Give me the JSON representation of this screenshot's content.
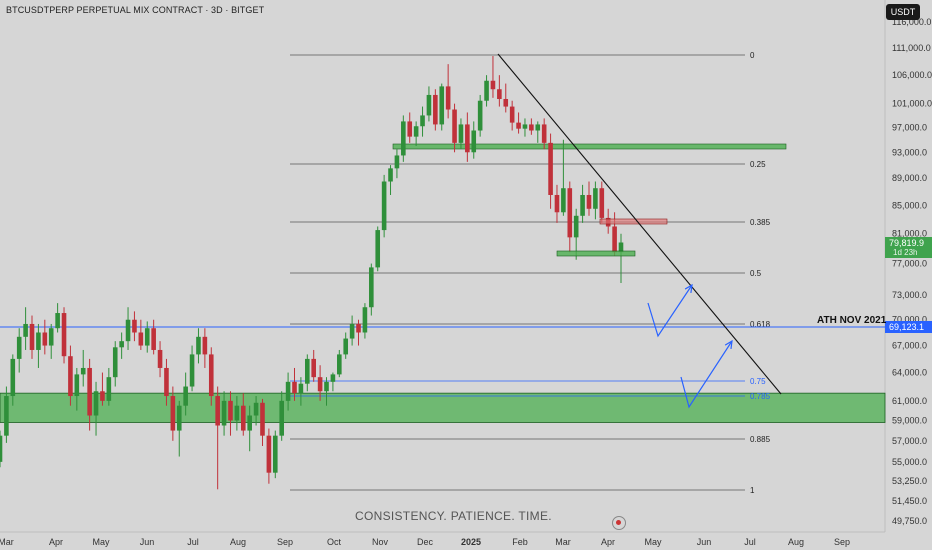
{
  "header": {
    "title": "BTCUSDTPERP PERPETUAL MIX CONTRACT · 3D · BITGET",
    "currency_button": "USDT"
  },
  "watermark": "CONSISTENCY. PATIENCE. TIME.",
  "ath_label": "ATH NOV 2021",
  "colors": {
    "up": "#2f8f3a",
    "down": "#c0313a",
    "zone": "#4caf50",
    "fib": "#444444",
    "ath_line": "#2962ff",
    "trend": "#111111"
  },
  "chart_data": {
    "type": "candlestick",
    "title": "BTCUSDTPERP PERPETUAL MIX CONTRACT · 3D · BITGET",
    "x_tick_labels": [
      "Mar",
      "Apr",
      "May",
      "Jun",
      "Jul",
      "Aug",
      "Sep",
      "Oct",
      "Nov",
      "Dec",
      "2025",
      "Feb",
      "Mar",
      "Apr",
      "May",
      "Jun",
      "Jul",
      "Aug",
      "Sep"
    ],
    "y_tick_labels": [
      "116,000.0",
      "111,000.0",
      "106,000.0",
      "101,000.0",
      "97,000.0",
      "93,000.0",
      "89,000.0",
      "85,000.0",
      "81,000.0",
      "77,000.0",
      "73,000.0",
      "70,000.0",
      "67,000.0",
      "64,000.0",
      "61,000.0",
      "59,000.0",
      "57,000.0",
      "55,000.0",
      "53,250.0",
      "51,450.0",
      "49,750.0"
    ],
    "y_tick_values": [
      116000,
      111000,
      106000,
      101000,
      97000,
      93000,
      89000,
      85000,
      81000,
      77000,
      73000,
      70000,
      67000,
      64000,
      61000,
      59000,
      57000,
      55000,
      53250,
      51450,
      49750
    ],
    "y_scale": "log",
    "current_price": {
      "value": "79,819.9",
      "countdown": "1d 23h"
    },
    "ath_price": {
      "value": "69,123.1",
      "label": "ATH NOV 2021"
    },
    "fib_levels": [
      {
        "label": "0",
        "price": 109500
      },
      {
        "label": "0.25",
        "price": 91200
      },
      {
        "label": "0.385",
        "price": 82800
      },
      {
        "label": "0.5",
        "price": 76500
      },
      {
        "label": "0.618",
        "price": 70300
      },
      {
        "label": "0.75",
        "price": 63500
      },
      {
        "label": "0.785",
        "price": 62000
      },
      {
        "label": "0.885",
        "price": 57600
      },
      {
        "label": "1",
        "price": 52800
      }
    ],
    "zones": [
      {
        "from": 58800,
        "to": 61800
      },
      {
        "from": 93600,
        "to": 94200
      }
    ],
    "candles": [
      {
        "o": 55000,
        "h": 58000,
        "l": 54500,
        "c": 57500
      },
      {
        "o": 57500,
        "h": 62500,
        "l": 56800,
        "c": 61500
      },
      {
        "o": 61500,
        "h": 66000,
        "l": 60500,
        "c": 65500
      },
      {
        "o": 65500,
        "h": 69000,
        "l": 64000,
        "c": 68000
      },
      {
        "o": 68000,
        "h": 71500,
        "l": 66500,
        "c": 69500
      },
      {
        "o": 69500,
        "h": 70500,
        "l": 65500,
        "c": 66500
      },
      {
        "o": 66500,
        "h": 69500,
        "l": 64500,
        "c": 68500
      },
      {
        "o": 68500,
        "h": 70000,
        "l": 66000,
        "c": 67000
      },
      {
        "o": 67000,
        "h": 69500,
        "l": 65500,
        "c": 69000
      },
      {
        "o": 69000,
        "h": 72000,
        "l": 68500,
        "c": 70800
      },
      {
        "o": 70800,
        "h": 71500,
        "l": 65000,
        "c": 65800
      },
      {
        "o": 65800,
        "h": 67000,
        "l": 60500,
        "c": 61500
      },
      {
        "o": 61500,
        "h": 64500,
        "l": 60000,
        "c": 63800
      },
      {
        "o": 63800,
        "h": 66500,
        "l": 62500,
        "c": 64500
      },
      {
        "o": 64500,
        "h": 65500,
        "l": 58000,
        "c": 59500
      },
      {
        "o": 59500,
        "h": 63000,
        "l": 57500,
        "c": 62000
      },
      {
        "o": 62000,
        "h": 64000,
        "l": 60500,
        "c": 61000
      },
      {
        "o": 61000,
        "h": 64500,
        "l": 60500,
        "c": 63500
      },
      {
        "o": 63500,
        "h": 67500,
        "l": 62500,
        "c": 66800
      },
      {
        "o": 66800,
        "h": 68500,
        "l": 65500,
        "c": 67500
      },
      {
        "o": 67500,
        "h": 71500,
        "l": 66500,
        "c": 70000
      },
      {
        "o": 70000,
        "h": 71000,
        "l": 67500,
        "c": 68500
      },
      {
        "o": 68500,
        "h": 70000,
        "l": 66500,
        "c": 67000
      },
      {
        "o": 67000,
        "h": 69800,
        "l": 66200,
        "c": 69000
      },
      {
        "o": 69000,
        "h": 70000,
        "l": 66000,
        "c": 66500
      },
      {
        "o": 66500,
        "h": 67500,
        "l": 63500,
        "c": 64500
      },
      {
        "o": 64500,
        "h": 65500,
        "l": 60500,
        "c": 61500
      },
      {
        "o": 61500,
        "h": 62500,
        "l": 57000,
        "c": 58000
      },
      {
        "o": 58000,
        "h": 61000,
        "l": 55500,
        "c": 60500
      },
      {
        "o": 60500,
        "h": 64000,
        "l": 59500,
        "c": 62500
      },
      {
        "o": 62500,
        "h": 67000,
        "l": 62000,
        "c": 66000
      },
      {
        "o": 66000,
        "h": 69000,
        "l": 65000,
        "c": 68000
      },
      {
        "o": 68000,
        "h": 69000,
        "l": 64500,
        "c": 66000
      },
      {
        "o": 66000,
        "h": 66800,
        "l": 60500,
        "c": 61500
      },
      {
        "o": 61500,
        "h": 62500,
        "l": 52500,
        "c": 58500
      },
      {
        "o": 58500,
        "h": 62000,
        "l": 57500,
        "c": 61000
      },
      {
        "o": 61000,
        "h": 62000,
        "l": 57500,
        "c": 59000
      },
      {
        "o": 59000,
        "h": 61500,
        "l": 58000,
        "c": 60500
      },
      {
        "o": 60500,
        "h": 61800,
        "l": 57500,
        "c": 58000
      },
      {
        "o": 58000,
        "h": 60500,
        "l": 56000,
        "c": 59500
      },
      {
        "o": 59500,
        "h": 61500,
        "l": 58500,
        "c": 60800
      },
      {
        "o": 60800,
        "h": 61200,
        "l": 56500,
        "c": 57500
      },
      {
        "o": 57500,
        "h": 58200,
        "l": 53000,
        "c": 54000
      },
      {
        "o": 54000,
        "h": 58000,
        "l": 53500,
        "c": 57500
      },
      {
        "o": 57500,
        "h": 62000,
        "l": 57000,
        "c": 61000
      },
      {
        "o": 61000,
        "h": 64000,
        "l": 60000,
        "c": 63000
      },
      {
        "o": 63000,
        "h": 64500,
        "l": 61000,
        "c": 61800
      },
      {
        "o": 61800,
        "h": 63500,
        "l": 60500,
        "c": 62800
      },
      {
        "o": 62800,
        "h": 66000,
        "l": 62000,
        "c": 65500
      },
      {
        "o": 65500,
        "h": 66500,
        "l": 63000,
        "c": 63500
      },
      {
        "o": 63500,
        "h": 64800,
        "l": 61000,
        "c": 62000
      },
      {
        "o": 62000,
        "h": 63500,
        "l": 60500,
        "c": 63000
      },
      {
        "o": 63000,
        "h": 64000,
        "l": 62000,
        "c": 63800
      },
      {
        "o": 63800,
        "h": 66500,
        "l": 63500,
        "c": 66000
      },
      {
        "o": 66000,
        "h": 68500,
        "l": 65500,
        "c": 67800
      },
      {
        "o": 67800,
        "h": 70500,
        "l": 67000,
        "c": 69500
      },
      {
        "o": 69500,
        "h": 70000,
        "l": 67000,
        "c": 68500
      },
      {
        "o": 68500,
        "h": 72000,
        "l": 67800,
        "c": 71500
      },
      {
        "o": 71500,
        "h": 77000,
        "l": 70500,
        "c": 76500
      },
      {
        "o": 76500,
        "h": 82000,
        "l": 76000,
        "c": 81500
      },
      {
        "o": 81500,
        "h": 89500,
        "l": 80500,
        "c": 88500
      },
      {
        "o": 88500,
        "h": 91000,
        "l": 86500,
        "c": 90500
      },
      {
        "o": 90500,
        "h": 93500,
        "l": 89000,
        "c": 92500
      },
      {
        "o": 92500,
        "h": 99000,
        "l": 91500,
        "c": 98000
      },
      {
        "o": 98000,
        "h": 99500,
        "l": 94500,
        "c": 95500
      },
      {
        "o": 95500,
        "h": 98000,
        "l": 94000,
        "c": 97200
      },
      {
        "o": 97200,
        "h": 100500,
        "l": 95500,
        "c": 99000
      },
      {
        "o": 99000,
        "h": 104000,
        "l": 98000,
        "c": 102500
      },
      {
        "o": 102500,
        "h": 103500,
        "l": 96500,
        "c": 97500
      },
      {
        "o": 97500,
        "h": 104500,
        "l": 96500,
        "c": 104000
      },
      {
        "o": 104000,
        "h": 108000,
        "l": 98500,
        "c": 100000
      },
      {
        "o": 100000,
        "h": 101000,
        "l": 93000,
        "c": 94500
      },
      {
        "o": 94500,
        "h": 98500,
        "l": 93500,
        "c": 97500
      },
      {
        "o": 97500,
        "h": 99500,
        "l": 91500,
        "c": 93000
      },
      {
        "o": 93000,
        "h": 98000,
        "l": 92000,
        "c": 96500
      },
      {
        "o": 96500,
        "h": 102500,
        "l": 95500,
        "c": 101500
      },
      {
        "o": 101500,
        "h": 106000,
        "l": 100500,
        "c": 105000
      },
      {
        "o": 105000,
        "h": 109500,
        "l": 102000,
        "c": 103500
      },
      {
        "o": 103500,
        "h": 106000,
        "l": 100500,
        "c": 101800
      },
      {
        "o": 101800,
        "h": 104500,
        "l": 99500,
        "c": 100500
      },
      {
        "o": 100500,
        "h": 101500,
        "l": 96500,
        "c": 97800
      },
      {
        "o": 97800,
        "h": 99500,
        "l": 96000,
        "c": 96800
      },
      {
        "o": 96800,
        "h": 98500,
        "l": 95500,
        "c": 97500
      },
      {
        "o": 97500,
        "h": 98500,
        "l": 95800,
        "c": 96500
      },
      {
        "o": 96500,
        "h": 98000,
        "l": 94500,
        "c": 97500
      },
      {
        "o": 97500,
        "h": 98500,
        "l": 93500,
        "c": 94500
      },
      {
        "o": 94500,
        "h": 96000,
        "l": 84500,
        "c": 86500
      },
      {
        "o": 86500,
        "h": 88000,
        "l": 82500,
        "c": 84000
      },
      {
        "o": 84000,
        "h": 95000,
        "l": 83500,
        "c": 87500
      },
      {
        "o": 87500,
        "h": 88500,
        "l": 78500,
        "c": 80500
      },
      {
        "o": 80500,
        "h": 84500,
        "l": 77500,
        "c": 83500
      },
      {
        "o": 83500,
        "h": 88000,
        "l": 82500,
        "c": 86500
      },
      {
        "o": 86500,
        "h": 88500,
        "l": 83500,
        "c": 84500
      },
      {
        "o": 84500,
        "h": 88500,
        "l": 83000,
        "c": 87500
      },
      {
        "o": 87500,
        "h": 88500,
        "l": 82500,
        "c": 83200
      },
      {
        "o": 83200,
        "h": 84500,
        "l": 81000,
        "c": 82000
      },
      {
        "o": 82000,
        "h": 84000,
        "l": 78000,
        "c": 78500
      },
      {
        "o": 78500,
        "h": 81000,
        "l": 74500,
        "c": 79800
      }
    ]
  }
}
